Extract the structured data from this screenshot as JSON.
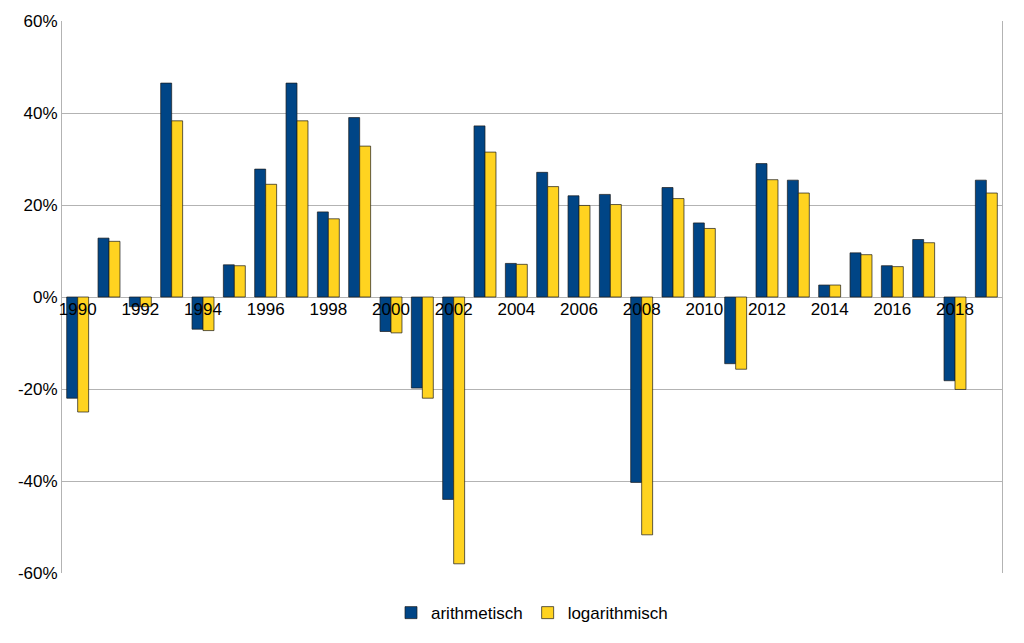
{
  "chart_data": {
    "type": "bar",
    "categories": [
      "1990",
      null,
      "1992",
      null,
      "1994",
      null,
      "1996",
      null,
      "1998",
      null,
      "2000",
      null,
      "2002",
      null,
      "2004",
      null,
      "2006",
      null,
      "2008",
      null,
      "2010",
      null,
      "2012",
      null,
      "2014",
      null,
      "2016",
      null,
      "2018",
      null
    ],
    "series": [
      {
        "name": "arithmetisch",
        "color": "#004586",
        "values": [
          -22,
          12.8,
          -2.1,
          46.5,
          -7,
          7,
          27.8,
          46.5,
          18.5,
          39,
          -7.5,
          -19.8,
          -44,
          37.2,
          7.3,
          27.1,
          22,
          22.3,
          -40.3,
          23.8,
          16.1,
          -14.5,
          29,
          25.4,
          2.6,
          9.6,
          6.8,
          12.5,
          -18.2,
          25.4
        ]
      },
      {
        "name": "logarithmisch",
        "color": "#ffd320",
        "values": [
          -25,
          12.1,
          -2.1,
          38.3,
          -7.3,
          6.8,
          24.5,
          38.3,
          17,
          32.8,
          -7.8,
          -22,
          -58,
          31.5,
          7.1,
          24,
          19.9,
          20.1,
          -51.7,
          21.4,
          14.9,
          -15.7,
          25.5,
          22.6,
          2.6,
          9.2,
          6.6,
          11.8,
          -20.1,
          22.6
        ]
      }
    ],
    "ylim": [
      -60,
      60
    ],
    "yticks": [
      {
        "value": -60,
        "label": "-60%"
      },
      {
        "value": -40,
        "label": "-40%"
      },
      {
        "value": -20,
        "label": "-20%"
      },
      {
        "value": 0,
        "label": "0%"
      },
      {
        "value": 20,
        "label": "20%"
      },
      {
        "value": 40,
        "label": "40%"
      },
      {
        "value": 60,
        "label": "60%"
      }
    ],
    "grid": true,
    "legend": "bottom"
  }
}
